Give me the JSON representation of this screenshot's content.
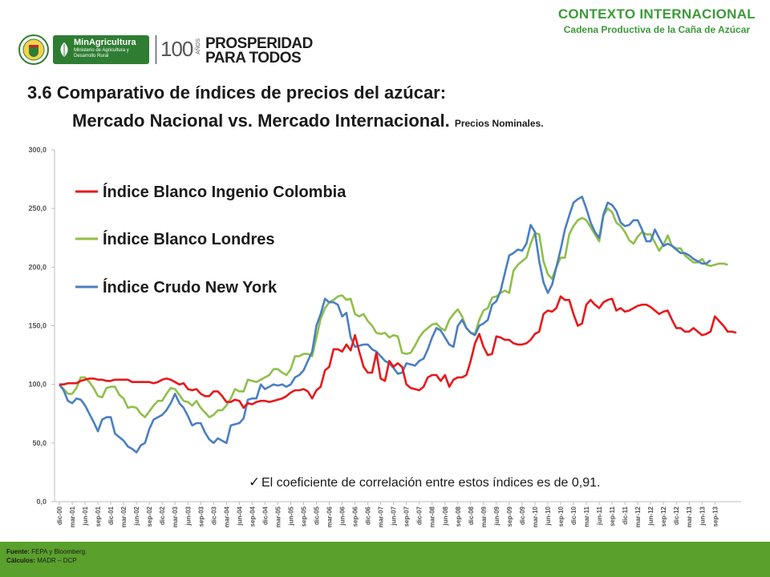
{
  "header": {
    "context_title": "CONTEXTO INTERNACIONAL",
    "context_subtitle": "Cadena Productiva de la Caña de Azúcar",
    "minagri_name": "MinAgricultura",
    "minagri_desc": "Ministerio de Agricultura y Desarrollo Rural",
    "centenary": "100",
    "centenary_word": "AÑOS",
    "prosperidad_line1": "PROSPERIDAD",
    "prosperidad_line2": "PARA TODOS"
  },
  "slide": {
    "title_line1": "3.6  Comparativo de índices de precios del  azúcar:",
    "title_line2": "Mercado Nacional vs. Mercado Internacional.",
    "title_note": "Precios Nominales.",
    "correlation_note": "El coeficiente de correlación entre estos índices es de 0,91.",
    "check_mark": "✓"
  },
  "footer": {
    "source_label": "Fuente:",
    "source_value": "FEPA y Bloomberg.",
    "calc_label": "Cálculos:",
    "calc_value": "MADR – DCP"
  },
  "chart_data": {
    "type": "line",
    "ylim": [
      0,
      300
    ],
    "y_ticks": [
      "0,0",
      "50,0",
      "100,0",
      "150,0",
      "200,0",
      "250,0",
      "300,0"
    ],
    "x_ticks": [
      "dic-00",
      "mar-01",
      "jun-01",
      "sep-01",
      "dic-01",
      "mar-02",
      "jun-02",
      "sep-02",
      "dic-02",
      "mar-03",
      "jun-03",
      "sep-03",
      "dic-03",
      "mar-04",
      "jun-04",
      "sep-04",
      "dic-04",
      "mar-05",
      "jun-05",
      "sep-05",
      "dic-05",
      "mar-06",
      "jun-06",
      "sep-06",
      "dic-06",
      "mar-07",
      "jun-07",
      "sep-07",
      "dic-07",
      "mar-08",
      "jun-08",
      "sep-08",
      "dic-08",
      "mar-09",
      "jun-09",
      "sep-09",
      "dic-09",
      "mar-10",
      "jun-10",
      "sep-10",
      "dic-10",
      "mar-11",
      "jun-11",
      "sep-11",
      "dic-11",
      "mar-12",
      "jun-12",
      "sep-12",
      "dic-12",
      "mar-13",
      "jun-13",
      "sep-13"
    ],
    "legend_position": "top-left",
    "grid": false,
    "series": [
      {
        "name": "Índice Blanco Ingenio Colombia",
        "color": "#e8181b",
        "values": [
          100,
          100,
          101,
          101,
          101,
          103,
          104,
          105,
          105,
          104,
          104,
          103,
          103,
          104,
          104,
          104,
          104,
          102,
          102,
          102,
          102,
          102,
          101,
          102,
          104,
          105,
          104,
          102,
          100,
          101,
          96,
          95,
          96,
          92,
          90,
          90,
          94,
          94,
          90,
          85,
          85,
          87,
          86,
          80,
          84,
          83,
          85,
          86,
          86,
          85,
          86,
          87,
          88,
          90,
          93,
          95,
          95,
          96,
          94,
          88,
          95,
          98,
          112,
          115,
          130,
          130,
          128,
          134,
          129,
          142,
          128,
          115,
          110,
          110,
          127,
          105,
          103,
          120,
          115,
          118,
          115,
          100,
          97,
          96,
          95,
          98,
          106,
          108,
          108,
          103,
          108,
          98,
          104,
          106,
          106,
          108,
          120,
          135,
          143,
          132,
          125,
          126,
          141,
          140,
          138,
          138,
          135,
          134,
          134,
          135,
          138,
          143,
          145,
          160,
          163,
          162,
          165,
          175,
          172,
          172,
          160,
          150,
          152,
          168,
          172,
          168,
          165,
          170,
          172,
          173,
          163,
          165,
          162,
          163,
          165,
          167,
          168,
          168,
          166,
          163,
          160,
          162,
          163,
          155,
          148,
          148,
          145,
          145,
          148,
          145,
          142,
          143,
          145,
          158,
          154,
          150,
          145,
          145,
          144
        ]
      },
      {
        "name": "Índice Blanco Londres",
        "color": "#8fbf4a",
        "values": [
          100,
          96,
          92,
          92,
          97,
          106,
          106,
          102,
          97,
          90,
          89,
          97,
          98,
          98,
          91,
          88,
          80,
          81,
          80,
          75,
          72,
          77,
          82,
          86,
          86,
          92,
          97,
          96,
          91,
          86,
          85,
          82,
          86,
          80,
          76,
          72,
          74,
          78,
          78,
          82,
          88,
          96,
          94,
          94,
          104,
          103,
          102,
          104,
          106,
          108,
          113,
          113,
          110,
          108,
          113,
          124,
          124,
          126,
          126,
          124,
          140,
          156,
          165,
          170,
          172,
          175,
          176,
          172,
          173,
          160,
          158,
          160,
          154,
          150,
          144,
          143,
          144,
          140,
          142,
          141,
          127,
          126,
          127,
          133,
          140,
          145,
          148,
          151,
          152,
          148,
          146,
          155,
          160,
          164,
          158,
          148,
          144,
          143,
          155,
          163,
          165,
          174,
          175,
          178,
          180,
          178,
          197,
          202,
          205,
          208,
          220,
          229,
          228,
          205,
          194,
          190,
          200,
          208,
          208,
          228,
          235,
          240,
          242,
          240,
          234,
          228,
          222,
          244,
          250,
          247,
          238,
          235,
          230,
          223,
          220,
          226,
          230,
          228,
          228,
          221,
          214,
          219,
          227,
          218,
          216,
          216,
          210,
          207,
          204,
          204,
          207,
          202,
          201,
          202,
          203,
          203,
          202
        ]
      },
      {
        "name": "Índice Crudo New York",
        "color": "#4a7fc1",
        "values": [
          100,
          95,
          86,
          84,
          88,
          87,
          82,
          75,
          68,
          60,
          70,
          72,
          72,
          58,
          55,
          52,
          47,
          45,
          42,
          48,
          50,
          62,
          70,
          72,
          74,
          78,
          84,
          92,
          84,
          80,
          73,
          65,
          67,
          67,
          59,
          53,
          50,
          54,
          52,
          50,
          65,
          66,
          67,
          71,
          87,
          88,
          88,
          100,
          96,
          98,
          100,
          99,
          100,
          98,
          100,
          106,
          108,
          112,
          120,
          128,
          150,
          160,
          173,
          170,
          170,
          168,
          158,
          161,
          140,
          132,
          133,
          134,
          134,
          130,
          128,
          124,
          120,
          118,
          114,
          109,
          110,
          118,
          117,
          116,
          120,
          122,
          130,
          140,
          148,
          146,
          140,
          134,
          132,
          150,
          155,
          148,
          144,
          142,
          150,
          152,
          155,
          168,
          171,
          180,
          195,
          210,
          212,
          215,
          214,
          220,
          236,
          230,
          205,
          187,
          178,
          185,
          200,
          215,
          232,
          244,
          255,
          258,
          260,
          250,
          238,
          230,
          225,
          245,
          255,
          253,
          248,
          238,
          235,
          236,
          240,
          240,
          232,
          222,
          222,
          232,
          225,
          218,
          220,
          218,
          215,
          212,
          212,
          210,
          207,
          205,
          203,
          203,
          206
        ]
      }
    ]
  }
}
